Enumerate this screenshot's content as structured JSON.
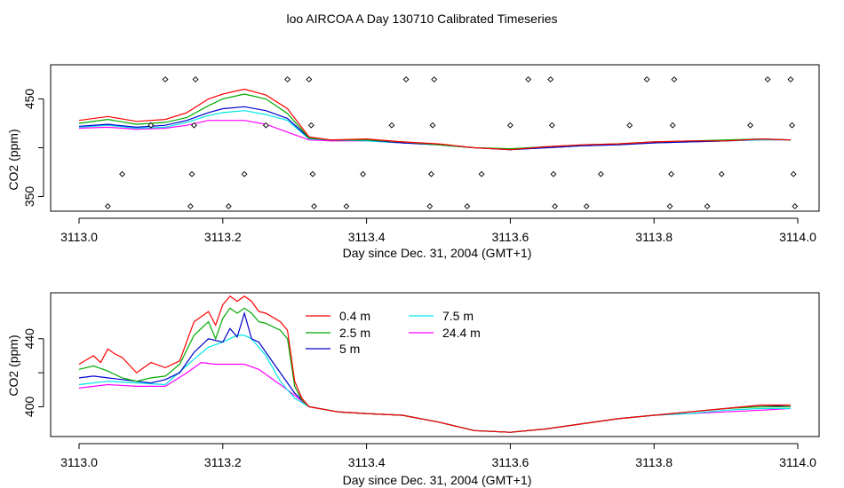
{
  "title": "loo AIRCOA A  Day 130710  Calibrated Timeseries",
  "chart_data": [
    {
      "type": "line",
      "xlabel": "Day since Dec. 31, 2004 (GMT+1)",
      "ylabel": "CO2 (ppm)",
      "xlim": [
        3113.0,
        3114.0
      ],
      "ylim": [
        335,
        485
      ],
      "x_ticks": [
        "3113.0",
        "3113.2",
        "3113.4",
        "3113.6",
        "3113.8",
        "3114.0"
      ],
      "y_ticks": [
        "350",
        "450"
      ],
      "colors": [
        "#ff0000",
        "#00aa00",
        "#0000cc",
        "#00e5e5",
        "#ff00ff"
      ],
      "series": [
        {
          "x": [
            3113.0,
            3113.04,
            3113.08,
            3113.12,
            3113.15,
            3113.18,
            3113.2,
            3113.23,
            3113.26,
            3113.29,
            3113.32,
            3113.35,
            3113.4,
            3113.45,
            3113.5,
            3113.55,
            3113.6,
            3113.65,
            3113.7,
            3113.75,
            3113.8,
            3113.85,
            3113.9,
            3113.95,
            3113.99
          ],
          "y": [
            428,
            432,
            427,
            429,
            436,
            450,
            455,
            460,
            454,
            440,
            411,
            408,
            409,
            406,
            404,
            400,
            398,
            401,
            403,
            404,
            406,
            407,
            407,
            409,
            408
          ]
        },
        {
          "x": [
            3113.0,
            3113.04,
            3113.08,
            3113.12,
            3113.15,
            3113.18,
            3113.2,
            3113.23,
            3113.26,
            3113.29,
            3113.32,
            3113.35,
            3113.4,
            3113.45,
            3113.5,
            3113.55,
            3113.6,
            3113.65,
            3113.7,
            3113.75,
            3113.8,
            3113.85,
            3113.9,
            3113.95,
            3113.99
          ],
          "y": [
            425,
            429,
            424,
            426,
            431,
            443,
            450,
            455,
            450,
            435,
            410,
            408,
            408,
            406,
            403,
            400,
            399,
            401,
            403,
            404,
            406,
            407,
            408,
            409,
            408
          ]
        },
        {
          "x": [
            3113.0,
            3113.04,
            3113.08,
            3113.12,
            3113.15,
            3113.18,
            3113.2,
            3113.23,
            3113.26,
            3113.29,
            3113.32,
            3113.35,
            3113.4,
            3113.45,
            3113.5,
            3113.55,
            3113.6,
            3113.65,
            3113.7,
            3113.75,
            3113.8,
            3113.85,
            3113.9,
            3113.95,
            3113.99
          ],
          "y": [
            422,
            424,
            421,
            423,
            428,
            436,
            440,
            442,
            438,
            430,
            410,
            408,
            408,
            405,
            403,
            400,
            398,
            400,
            402,
            403,
            405,
            406,
            407,
            409,
            408
          ]
        },
        {
          "x": [
            3113.0,
            3113.04,
            3113.08,
            3113.12,
            3113.15,
            3113.18,
            3113.2,
            3113.23,
            3113.26,
            3113.29,
            3113.32,
            3113.35,
            3113.4,
            3113.45,
            3113.5,
            3113.55,
            3113.6,
            3113.65,
            3113.7,
            3113.75,
            3113.8,
            3113.85,
            3113.9,
            3113.95,
            3113.99
          ],
          "y": [
            421,
            423,
            420,
            421,
            426,
            433,
            436,
            438,
            434,
            428,
            409,
            408,
            407,
            405,
            403,
            400,
            398,
            400,
            402,
            403,
            405,
            406,
            407,
            408,
            408
          ]
        },
        {
          "x": [
            3113.0,
            3113.04,
            3113.08,
            3113.12,
            3113.15,
            3113.18,
            3113.2,
            3113.23,
            3113.26,
            3113.29,
            3113.32,
            3113.35,
            3113.4,
            3113.45,
            3113.5,
            3113.55,
            3113.6,
            3113.65,
            3113.7,
            3113.75,
            3113.8,
            3113.85,
            3113.9,
            3113.95,
            3113.99
          ],
          "y": [
            420,
            421,
            419,
            420,
            423,
            428,
            428,
            428,
            424,
            416,
            408,
            407,
            407,
            405,
            403,
            400,
            398,
            400,
            402,
            403,
            405,
            406,
            407,
            408,
            408
          ]
        }
      ],
      "markers": [
        {
          "x": 3113.04,
          "y": 340
        },
        {
          "x": 3113.06,
          "y": 373
        },
        {
          "x": 3113.1,
          "y": 423
        },
        {
          "x": 3113.12,
          "y": 470
        },
        {
          "x": 3113.155,
          "y": 340
        },
        {
          "x": 3113.157,
          "y": 373
        },
        {
          "x": 3113.16,
          "y": 423
        },
        {
          "x": 3113.162,
          "y": 470
        },
        {
          "x": 3113.208,
          "y": 340
        },
        {
          "x": 3113.23,
          "y": 373
        },
        {
          "x": 3113.26,
          "y": 423
        },
        {
          "x": 3113.29,
          "y": 470
        },
        {
          "x": 3113.32,
          "y": 470
        },
        {
          "x": 3113.323,
          "y": 423
        },
        {
          "x": 3113.325,
          "y": 373
        },
        {
          "x": 3113.327,
          "y": 340
        },
        {
          "x": 3113.372,
          "y": 340
        },
        {
          "x": 3113.395,
          "y": 373
        },
        {
          "x": 3113.435,
          "y": 423
        },
        {
          "x": 3113.455,
          "y": 470
        },
        {
          "x": 3113.488,
          "y": 340
        },
        {
          "x": 3113.49,
          "y": 373
        },
        {
          "x": 3113.492,
          "y": 423
        },
        {
          "x": 3113.494,
          "y": 470
        },
        {
          "x": 3113.54,
          "y": 340
        },
        {
          "x": 3113.56,
          "y": 373
        },
        {
          "x": 3113.6,
          "y": 423
        },
        {
          "x": 3113.625,
          "y": 470
        },
        {
          "x": 3113.656,
          "y": 470
        },
        {
          "x": 3113.658,
          "y": 423
        },
        {
          "x": 3113.66,
          "y": 373
        },
        {
          "x": 3113.662,
          "y": 340
        },
        {
          "x": 3113.706,
          "y": 340
        },
        {
          "x": 3113.726,
          "y": 373
        },
        {
          "x": 3113.766,
          "y": 423
        },
        {
          "x": 3113.79,
          "y": 470
        },
        {
          "x": 3113.822,
          "y": 340
        },
        {
          "x": 3113.824,
          "y": 373
        },
        {
          "x": 3113.826,
          "y": 423
        },
        {
          "x": 3113.828,
          "y": 470
        },
        {
          "x": 3113.874,
          "y": 340
        },
        {
          "x": 3113.894,
          "y": 373
        },
        {
          "x": 3113.934,
          "y": 423
        },
        {
          "x": 3113.958,
          "y": 470
        },
        {
          "x": 3113.99,
          "y": 470
        },
        {
          "x": 3113.992,
          "y": 423
        },
        {
          "x": 3113.994,
          "y": 373
        },
        {
          "x": 3113.996,
          "y": 340
        }
      ]
    },
    {
      "type": "line",
      "xlabel": "Day since Dec. 31, 2004 (GMT+1)",
      "ylabel": "CO2 (ppm)",
      "xlim": [
        3113.0,
        3114.0
      ],
      "ylim": [
        382.5,
        467
      ],
      "x_ticks": [
        "3113.0",
        "3113.2",
        "3113.4",
        "3113.6",
        "3113.8",
        "3114.0"
      ],
      "y_ticks": [
        "400",
        "440"
      ],
      "legend": [
        "0.4 m",
        "2.5 m",
        "5 m",
        "7.5 m",
        "24.4 m"
      ],
      "colors": [
        "#ff0000",
        "#00aa00",
        "#0000cc",
        "#00e5e5",
        "#ff00ff"
      ],
      "series": [
        {
          "name": "0.4 m",
          "x": [
            3113.0,
            3113.02,
            3113.03,
            3113.04,
            3113.05,
            3113.06,
            3113.08,
            3113.1,
            3113.12,
            3113.14,
            3113.16,
            3113.18,
            3113.19,
            3113.2,
            3113.21,
            3113.22,
            3113.23,
            3113.24,
            3113.25,
            3113.26,
            3113.28,
            3113.29,
            3113.3,
            3113.31,
            3113.32,
            3113.36,
            3113.4,
            3113.45,
            3113.5,
            3113.55,
            3113.6,
            3113.65,
            3113.7,
            3113.75,
            3113.8,
            3113.85,
            3113.9,
            3113.95,
            3113.99
          ],
          "y": [
            425,
            430,
            426,
            434,
            431,
            429,
            420,
            426,
            423,
            427,
            450,
            456,
            448,
            460,
            465,
            462,
            465,
            462,
            456,
            455,
            450,
            445,
            415,
            405,
            400,
            397,
            396,
            395,
            391,
            386,
            385,
            387,
            390,
            393,
            395,
            397,
            399,
            401,
            401
          ]
        },
        {
          "name": "2.5 m",
          "x": [
            3113.0,
            3113.02,
            3113.04,
            3113.06,
            3113.08,
            3113.1,
            3113.12,
            3113.14,
            3113.16,
            3113.18,
            3113.19,
            3113.2,
            3113.21,
            3113.22,
            3113.23,
            3113.24,
            3113.25,
            3113.26,
            3113.28,
            3113.29,
            3113.3,
            3113.31,
            3113.32,
            3113.36,
            3113.4,
            3113.45,
            3113.5,
            3113.55,
            3113.6,
            3113.65,
            3113.7,
            3113.75,
            3113.8,
            3113.85,
            3113.9,
            3113.95,
            3113.99
          ],
          "y": [
            422,
            424,
            421,
            417,
            415,
            417,
            418,
            425,
            442,
            450,
            440,
            452,
            458,
            455,
            458,
            455,
            450,
            449,
            445,
            440,
            412,
            404,
            400,
            397,
            396,
            395,
            391,
            386,
            385,
            387,
            390,
            393,
            395,
            397,
            399,
            400,
            400
          ]
        },
        {
          "name": "5 m",
          "x": [
            3113.0,
            3113.02,
            3113.04,
            3113.06,
            3113.08,
            3113.1,
            3113.12,
            3113.14,
            3113.16,
            3113.18,
            3113.2,
            3113.21,
            3113.22,
            3113.23,
            3113.24,
            3113.25,
            3113.26,
            3113.28,
            3113.29,
            3113.3,
            3113.32,
            3113.36,
            3113.4,
            3113.45,
            3113.5,
            3113.55,
            3113.6,
            3113.65,
            3113.7,
            3113.75,
            3113.8,
            3113.85,
            3113.9,
            3113.95,
            3113.99
          ],
          "y": [
            417,
            418,
            417,
            416,
            415,
            414,
            416,
            420,
            432,
            440,
            438,
            446,
            441,
            455,
            440,
            438,
            432,
            420,
            414,
            408,
            400,
            397,
            396,
            395,
            391,
            386,
            385,
            387,
            390,
            393,
            395,
            397,
            399,
            401,
            400
          ]
        },
        {
          "name": "7.5 m",
          "x": [
            3113.0,
            3113.04,
            3113.08,
            3113.12,
            3113.16,
            3113.18,
            3113.2,
            3113.22,
            3113.23,
            3113.24,
            3113.26,
            3113.28,
            3113.3,
            3113.32,
            3113.36,
            3113.4,
            3113.45,
            3113.5,
            3113.55,
            3113.6,
            3113.65,
            3113.7,
            3113.75,
            3113.8,
            3113.85,
            3113.9,
            3113.95,
            3113.99
          ],
          "y": [
            413,
            415,
            414,
            413,
            428,
            435,
            438,
            442,
            442,
            440,
            430,
            415,
            405,
            400,
            397,
            396,
            395,
            391,
            386,
            385,
            387,
            390,
            393,
            395,
            396,
            398,
            399,
            399
          ]
        },
        {
          "name": "24.4 m",
          "x": [
            3113.0,
            3113.04,
            3113.08,
            3113.12,
            3113.15,
            3113.17,
            3113.19,
            3113.21,
            3113.23,
            3113.25,
            3113.27,
            3113.29,
            3113.32,
            3113.36,
            3113.4,
            3113.45,
            3113.5,
            3113.55,
            3113.6,
            3113.65,
            3113.7,
            3113.75,
            3113.8,
            3113.85,
            3113.9,
            3113.95,
            3113.99
          ],
          "y": [
            411,
            413,
            412,
            412,
            420,
            426,
            425,
            425,
            425,
            422,
            416,
            410,
            400,
            397,
            396,
            395,
            391,
            386,
            385,
            387,
            390,
            393,
            395,
            396,
            397,
            398,
            399
          ]
        }
      ]
    }
  ]
}
